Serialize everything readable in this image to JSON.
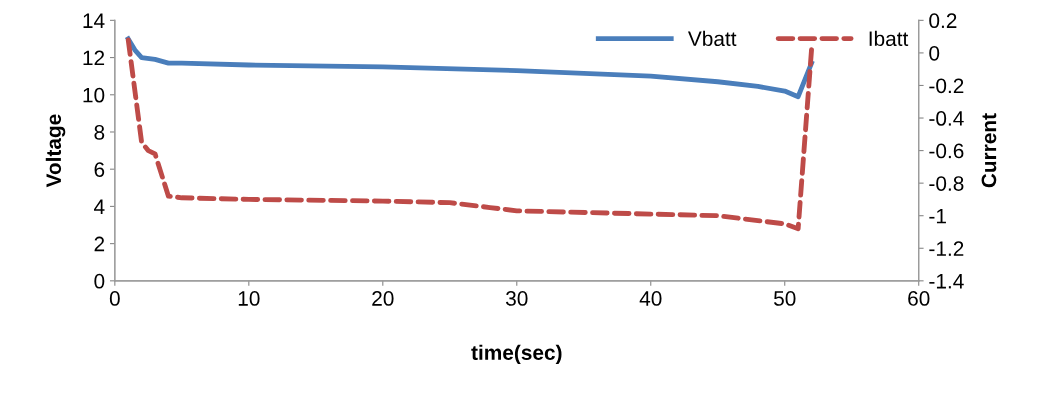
{
  "chart_data": {
    "type": "line",
    "xlabel": "time(sec)",
    "ylabel": "Voltage",
    "y2label": "Current",
    "xlim": [
      0,
      60
    ],
    "xticks": [
      0,
      10,
      20,
      30,
      40,
      50,
      60
    ],
    "ylim": [
      0,
      14
    ],
    "yticks": [
      0,
      2,
      4,
      6,
      8,
      10,
      12,
      14
    ],
    "y2lim": [
      -1.4,
      0.2
    ],
    "y2ticks": [
      -1.4,
      -1.2,
      -1,
      -0.8,
      -0.6,
      -0.4,
      -0.2,
      0,
      0.2
    ],
    "legend": "top right",
    "grid": false,
    "series": [
      {
        "name": "Vbatt",
        "color": "#4a7ebb",
        "line_style": "solid",
        "x": [
          1,
          1.5,
          2,
          3,
          4,
          5,
          10,
          20,
          30,
          40,
          45,
          48,
          50,
          51,
          52
        ],
        "values": [
          13.0,
          12.4,
          12.0,
          11.9,
          11.7,
          11.7,
          11.6,
          11.5,
          11.3,
          11.0,
          10.7,
          10.45,
          10.2,
          9.9,
          11.7
        ]
      },
      {
        "name": "Ibatt",
        "color": "#be4b48",
        "line_style": "dashed",
        "axis": "y2",
        "x": [
          1,
          2,
          2.5,
          3,
          4,
          5,
          10,
          20,
          25,
          28,
          30,
          40,
          45,
          50,
          51,
          52
        ],
        "values": [
          0.08,
          -0.55,
          -0.6,
          -0.62,
          -0.88,
          -0.89,
          -0.9,
          -0.91,
          -0.92,
          -0.95,
          -0.97,
          -0.99,
          -1.0,
          -1.05,
          -1.08,
          0.02
        ]
      }
    ]
  }
}
